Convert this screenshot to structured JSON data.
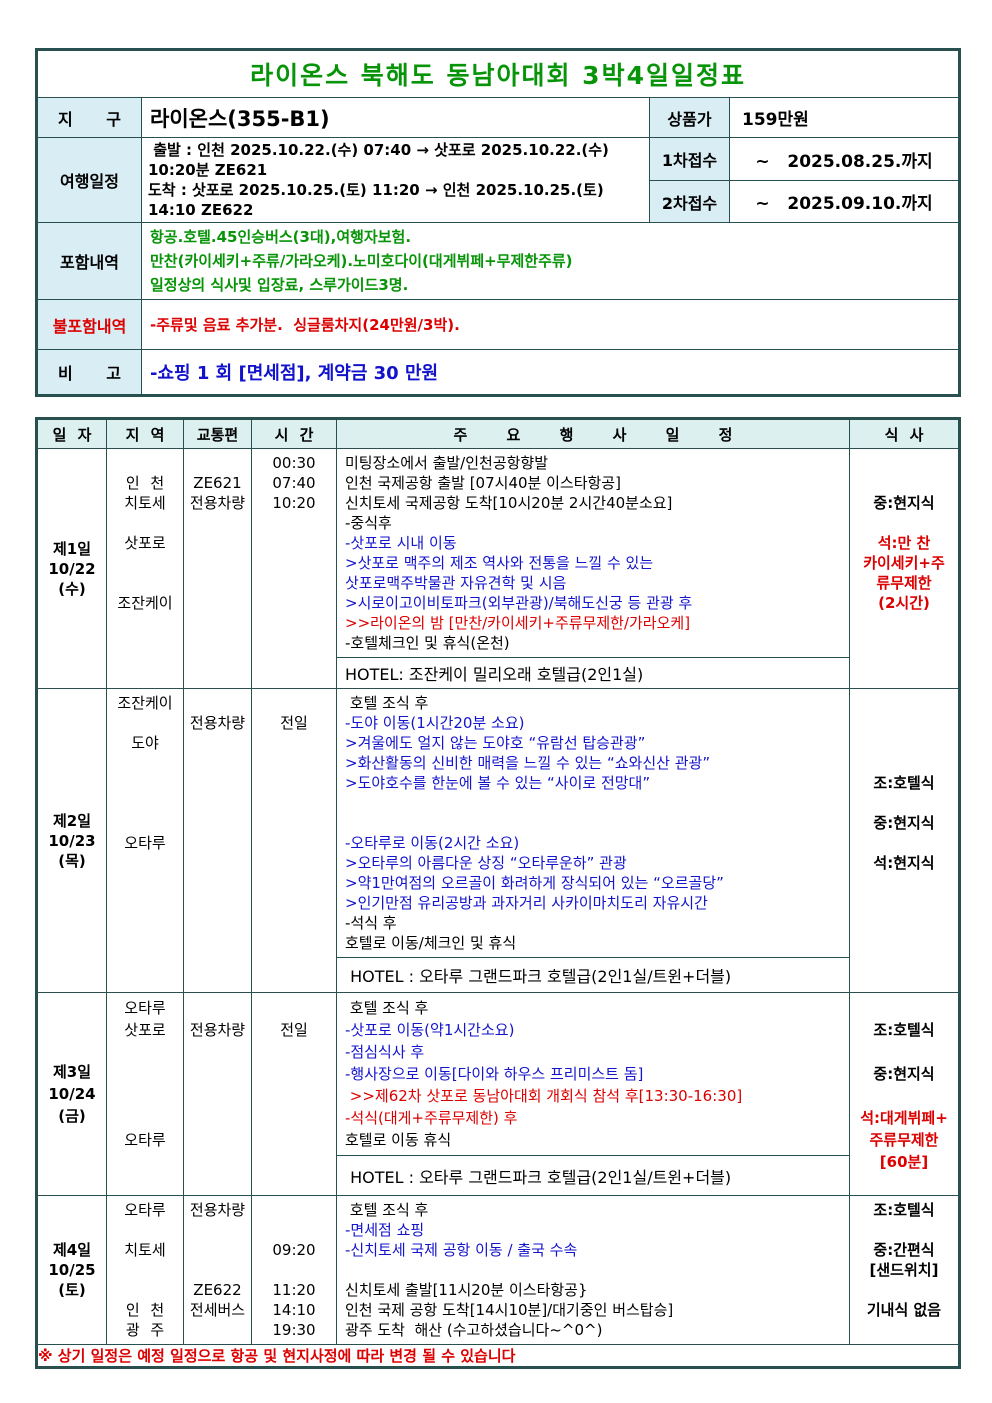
{
  "page": {
    "title": "라이온스 북해도 동남아대회 3박4일일정표"
  },
  "colors": {
    "title_green": "#089408",
    "text_blue": "#1414cc",
    "text_red": "#dc0000",
    "label_background": "#d9edf4",
    "table_border": "#27504e"
  },
  "info": {
    "district_label": "지 구",
    "district_value": "라이온스(355-B1)",
    "price_label": "상품가",
    "price_value": "159만원",
    "schedule_label": "여행일정",
    "schedule_lines": [
      " 출발 : 인천 2025.10.22.(수) 07:40 → 삿포로 2025.10.22.(수)",
      "10:20분 ZE621",
      "도착 : 삿포로 2025.10.25.(토) 11:20 → 인천 2025.10.25.(토)",
      "14:10 ZE622"
    ],
    "first_label": "1차접수",
    "first_value": "~   2025.08.25.까지",
    "second_label": "2차접수",
    "second_value": "~   2025.09.10.까지",
    "included_label": "포함내역",
    "included_lines": [
      "항공.호텔.45인승버스(3대),여행자보험.",
      "만찬(카이세키+주류/가라오케).노미호다이(대게뷔페+무제한주류)",
      "일정상의 식사및 입장료, 스루가이드3명."
    ],
    "excluded_label": "불포함내역",
    "excluded_text": "-주류및 음료 추가분.  싱글룸차지(24만원/3박).",
    "note_label": "비 고",
    "note_text": "-쇼핑 1 회 [면세점], 계약금 30 만원"
  },
  "itinerary": {
    "headers": [
      "일 자",
      "지 역",
      "교통편",
      "시 간",
      "주 요 행 사 일 정",
      "식 사"
    ],
    "days": [
      {
        "day": [
          "제1일",
          "10/22",
          "(수)"
        ],
        "regions": [
          "",
          "인 천",
          "치토세",
          "",
          "삿포로",
          "",
          "",
          "조잔케이"
        ],
        "transport": [
          "",
          "ZE621",
          "전용차량"
        ],
        "times": [
          "00:30",
          "07:40",
          "10:20"
        ],
        "events": [
          {
            "t": "미팅장소에서 출발/인천공항향발",
            "c": "k"
          },
          {
            "t": "인천 국제공항 출발 [07시40분 이스타항공]",
            "c": "k"
          },
          {
            "t": "신치토세 국제공항 도착[10시20분 2시간40분소요]",
            "c": "k"
          },
          {
            "t": "-중식후",
            "c": "k"
          },
          {
            "t": "-삿포로 시내 이동",
            "c": "b"
          },
          {
            "t": ">삿포로 맥주의 제조 역사와 전통을 느낄 수 있는",
            "c": "b"
          },
          {
            "t": "삿포로맥주박물관 자유견학 및 시음",
            "c": "b"
          },
          {
            "t": ">시로이고이비토파크(외부관광)/북해도신궁 등 관광 후",
            "c": "b"
          },
          {
            "t": ">>라이온의 밤 [만찬/카이세키+주류무제한/가라오케]",
            "c": "r"
          },
          {
            "t": "-호텔체크인 및 휴식(온천)",
            "c": "k"
          }
        ],
        "hotel": "HOTEL: 조잔케이 밀리오래 호텔급(2인1실)",
        "meals": [
          {
            "t": "",
            "c": "k"
          },
          {
            "t": "",
            "c": "k"
          },
          {
            "t": "중:현지식",
            "c": "k"
          },
          {
            "t": "",
            "c": "k"
          },
          {
            "t": "석:만 찬",
            "c": "r"
          },
          {
            "t": "카이세키+주",
            "c": "r"
          },
          {
            "t": "류무제한",
            "c": "r"
          },
          {
            "t": "(2시간)",
            "c": "r"
          }
        ]
      },
      {
        "day": [
          "제2일",
          "10/23",
          "(목)"
        ],
        "regions": [
          "조잔케이",
          "",
          "도야",
          "",
          "",
          "",
          "",
          "오타루"
        ],
        "transport": [
          "",
          "전용차량"
        ],
        "times": [
          "",
          "전일"
        ],
        "events": [
          {
            "t": " 호텔 조식 후",
            "c": "k"
          },
          {
            "t": "-도야 이동(1시간20분 소요)",
            "c": "b"
          },
          {
            "t": ">겨울에도 얼지 않는 도야호 “유람선 탑승관광”",
            "c": "b"
          },
          {
            "t": ">화산활동의 신비한 매력을 느낄 수 있는 “쇼와신산 관광”",
            "c": "b"
          },
          {
            "t": ">도야호수를 한눈에 볼 수 있는 “사이로 전망대”",
            "c": "b"
          },
          {
            "t": "",
            "c": "k"
          },
          {
            "t": "",
            "c": "k"
          },
          {
            "t": "-오타루로 이동(2시간 소요)",
            "c": "b"
          },
          {
            "t": ">오타루의 아름다운 상징 “오타루운하” 관광",
            "c": "b"
          },
          {
            "t": ">약1만여점의 오르골이 화려하게 장식되어 있는 “오르골당”",
            "c": "b"
          },
          {
            "t": ">인기만점 유리공방과 과자거리 사카이마치도리 자유시간",
            "c": "b"
          },
          {
            "t": "-석식 후",
            "c": "k"
          },
          {
            "t": "호텔로 이동/체크인 및 휴식",
            "c": "k"
          }
        ],
        "hotel": " HOTEL : 오타루 그랜드파크 호텔급(2인1실/트윈+더블)",
        "meals": [
          {
            "t": "",
            "c": "k"
          },
          {
            "t": "",
            "c": "k"
          },
          {
            "t": "",
            "c": "k"
          },
          {
            "t": "",
            "c": "k"
          },
          {
            "t": "조:호텔식",
            "c": "k"
          },
          {
            "t": "",
            "c": "k"
          },
          {
            "t": "중:현지식",
            "c": "k"
          },
          {
            "t": "",
            "c": "k"
          },
          {
            "t": "석:현지식",
            "c": "k"
          }
        ]
      },
      {
        "day": [
          "제3일",
          "10/24",
          "(금)"
        ],
        "regions": [
          "오타루",
          "삿포로",
          "",
          "",
          "",
          "",
          "오타루"
        ],
        "transport": [
          "",
          "전용차량"
        ],
        "times": [
          "",
          "전일"
        ],
        "events": [
          {
            "t": " 호텔 조식 후",
            "c": "k"
          },
          {
            "t": "-삿포로 이동(약1시간소요)",
            "c": "b"
          },
          {
            "t": "-점심식사 후",
            "c": "b"
          },
          {
            "t": "-행사장으로 이동[다이와 하우스 프리미스트 돔]",
            "c": "b"
          },
          {
            "t": " >>제62차 삿포로 동남아대회 개회식 참석 후[13:30-16:30]",
            "c": "r"
          },
          {
            "t": "-석식(대게+주류무제한) 후",
            "c": "r"
          },
          {
            "t": "호텔로 이동 휴식",
            "c": "k"
          }
        ],
        "hotel": " HOTEL : 오타루 그랜드파크 호텔급(2인1실/트윈+더블)",
        "meals": [
          {
            "t": "",
            "c": "k"
          },
          {
            "t": "조:호텔식",
            "c": "k"
          },
          {
            "t": "",
            "c": "k"
          },
          {
            "t": "중:현지식",
            "c": "k"
          },
          {
            "t": "",
            "c": "k"
          },
          {
            "t": "석:대게뷔페+",
            "c": "r"
          },
          {
            "t": "주류무제한",
            "c": "r"
          },
          {
            "t": "[60분]",
            "c": "r"
          }
        ]
      },
      {
        "day": [
          "제4일",
          "10/25",
          "(토)"
        ],
        "regions": [
          "오타루",
          "",
          "치토세",
          "",
          "",
          "인 천",
          "광 주"
        ],
        "transport": [
          "전용차량",
          "",
          "",
          "",
          "ZE622",
          "전세버스"
        ],
        "times": [
          "",
          "",
          "09:20",
          "",
          "11:20",
          "14:10",
          "19:30"
        ],
        "events": [
          {
            "t": " 호텔 조식 후",
            "c": "k"
          },
          {
            "t": "-면세점 쇼핑",
            "c": "b"
          },
          {
            "t": "-신치토세 국제 공항 이동 / 출국 수속",
            "c": "b"
          },
          {
            "t": "",
            "c": "k"
          },
          {
            "t": "신치토세 출발[11시20분 이스타항공}",
            "c": "k"
          },
          {
            "t": "인천 국제 공항 도착[14시10분]/대기중인 버스탑승]",
            "c": "k"
          },
          {
            "t": "광주 도착  해산 (수고하셨습니다~^0^)",
            "c": "k"
          }
        ],
        "hotel": null,
        "meals": [
          {
            "t": "조:호텔식",
            "c": "k"
          },
          {
            "t": "",
            "c": "k"
          },
          {
            "t": "중:간편식",
            "c": "k"
          },
          {
            "t": "[샌드위치]",
            "c": "k"
          },
          {
            "t": "",
            "c": "k"
          },
          {
            "t": "기내식 없음",
            "c": "k"
          }
        ]
      }
    ],
    "footnote": "※ 상기 일정은 예정 일정으로 항공 및 현지사정에 따라 변경 될 수 있습니다"
  }
}
